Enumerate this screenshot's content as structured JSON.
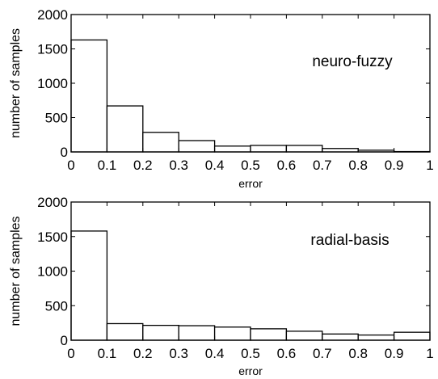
{
  "chart_data": [
    {
      "type": "bar",
      "title": "",
      "annotation": "neuro-fuzzy",
      "xlabel": "error",
      "ylabel": "number of samples",
      "xlim": [
        0,
        1
      ],
      "ylim": [
        0,
        2000
      ],
      "x_ticks": [
        "0",
        "0.1",
        "0.2",
        "0.3",
        "0.4",
        "0.5",
        "0.6",
        "0.7",
        "0.8",
        "0.9",
        "1"
      ],
      "y_ticks": [
        "0",
        "500",
        "1000",
        "1500",
        "2000"
      ],
      "bin_edges": [
        0,
        0.1,
        0.2,
        0.3,
        0.4,
        0.5,
        0.6,
        0.7,
        0.8,
        0.9,
        1.0
      ],
      "values": [
        1630,
        670,
        285,
        165,
        85,
        95,
        95,
        50,
        25,
        5
      ],
      "grid": false,
      "colors": {
        "bar_fill": "#ffffff",
        "bar_edge": "#000000"
      }
    },
    {
      "type": "bar",
      "title": "",
      "annotation": "radial-basis",
      "xlabel": "error",
      "ylabel": "number of samples",
      "xlim": [
        0,
        1
      ],
      "ylim": [
        0,
        2000
      ],
      "x_ticks": [
        "0",
        "0.1",
        "0.2",
        "0.3",
        "0.4",
        "0.5",
        "0.6",
        "0.7",
        "0.8",
        "0.9",
        "1"
      ],
      "y_ticks": [
        "0",
        "500",
        "1000",
        "1500",
        "2000"
      ],
      "bin_edges": [
        0,
        0.1,
        0.2,
        0.3,
        0.4,
        0.5,
        0.6,
        0.7,
        0.8,
        0.9,
        1.0
      ],
      "values": [
        1580,
        240,
        215,
        210,
        190,
        165,
        130,
        90,
        75,
        115
      ],
      "grid": false,
      "colors": {
        "bar_fill": "#ffffff",
        "bar_edge": "#000000"
      }
    }
  ]
}
